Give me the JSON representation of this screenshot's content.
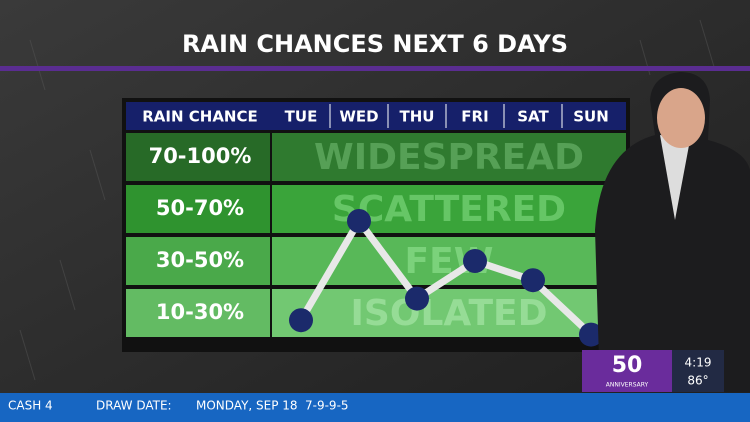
{
  "chart_data": {
    "type": "line",
    "title": "RAIN CHANCES NEXT 6 DAYS",
    "row_header": "RAIN CHANCE",
    "categories": [
      "TUE",
      "WED",
      "THU",
      "FRI",
      "SAT",
      "SUN"
    ],
    "rows": [
      {
        "label": "70-100%",
        "word": "WIDESPREAD",
        "range": [
          70,
          100
        ]
      },
      {
        "label": "50-70%",
        "word": "SCATTERED",
        "range": [
          50,
          70
        ]
      },
      {
        "label": "30-50%",
        "word": "FEW",
        "range": [
          30,
          50
        ]
      },
      {
        "label": "10-30%",
        "word": "ISOLATED",
        "range": [
          10,
          30
        ]
      }
    ],
    "values": [
      17,
      55,
      26,
      40,
      32,
      11
    ],
    "color": "#1b2a6b"
  },
  "ticker": [
    "CASH 4",
    "DRAW DATE:",
    "MONDAY, SEP 18",
    "7-9-9-5"
  ],
  "logo": {
    "number": "50",
    "caption": "ANNIVERSARY"
  },
  "clock": {
    "time": "4:19",
    "temperature": "86°"
  }
}
